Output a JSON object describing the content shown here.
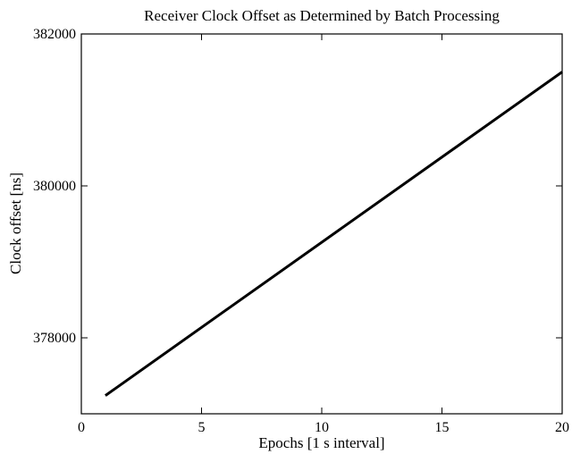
{
  "chart_data": {
    "type": "line",
    "title": "Receiver Clock Offset as Determined by Batch Processing",
    "xlabel": "Epochs [1 s interval]",
    "ylabel": "Clock offset [ns]",
    "xlim": [
      0,
      20
    ],
    "ylim": [
      377000,
      382000
    ],
    "xticks": [
      0,
      5,
      10,
      15,
      20
    ],
    "yticks": [
      378000,
      380000,
      382000
    ],
    "grid": false,
    "series": [
      {
        "color": "#000000",
        "x": [
          1,
          20
        ],
        "y": [
          377240,
          381500
        ]
      }
    ]
  }
}
